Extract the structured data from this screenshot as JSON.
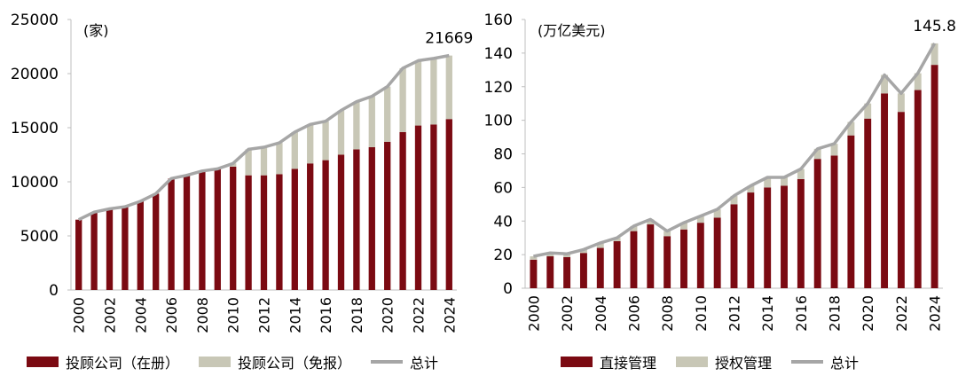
{
  "chart_data": [
    {
      "type": "bar",
      "stacked": true,
      "unit_label": "(家)",
      "categories": [
        "2000",
        "2001",
        "2002",
        "2003",
        "2004",
        "2005",
        "2006",
        "2007",
        "2008",
        "2009",
        "2010",
        "2011",
        "2012",
        "2013",
        "2014",
        "2015",
        "2016",
        "2017",
        "2018",
        "2019",
        "2020",
        "2021",
        "2022",
        "2023",
        "2024"
      ],
      "x_tick_labels": [
        "2000",
        "2002",
        "2004",
        "2006",
        "2008",
        "2010",
        "2012",
        "2014",
        "2016",
        "2018",
        "2020",
        "2022",
        "2024"
      ],
      "series": [
        {
          "name": "投顾公司（在册）",
          "kind": "bar",
          "color": "#7b0a12",
          "values": [
            6500,
            7200,
            7500,
            7700,
            8200,
            8900,
            10300,
            10600,
            11000,
            11200,
            11400,
            10600,
            10600,
            10700,
            11200,
            11700,
            12000,
            12500,
            13000,
            13200,
            13700,
            14600,
            15200,
            15300,
            15800
          ]
        },
        {
          "name": "投顾公司（免报）",
          "kind": "bar",
          "color": "#c8c7b6",
          "values": [
            0,
            0,
            0,
            0,
            0,
            0,
            0,
            0,
            0,
            0,
            300,
            2400,
            2600,
            2900,
            3400,
            3600,
            3600,
            4100,
            4400,
            4700,
            5100,
            5900,
            6000,
            6100,
            5869
          ]
        },
        {
          "name": "总计",
          "kind": "line",
          "color": "#a6a6a6",
          "values": [
            6500,
            7200,
            7500,
            7700,
            8200,
            8900,
            10300,
            10600,
            11000,
            11200,
            11700,
            13000,
            13200,
            13600,
            14600,
            15300,
            15600,
            16600,
            17400,
            17900,
            18800,
            20500,
            21200,
            21400,
            21669
          ]
        }
      ],
      "annotation": {
        "label": "21669",
        "category": "2024"
      },
      "ylim": [
        0,
        25000
      ],
      "yticks": [
        0,
        5000,
        10000,
        15000,
        20000,
        25000
      ],
      "grid": false,
      "legend_position": "bottom"
    },
    {
      "type": "bar",
      "stacked": true,
      "unit_label": "(万亿美元)",
      "categories": [
        "2000",
        "2001",
        "2002",
        "2003",
        "2004",
        "2005",
        "2006",
        "2007",
        "2008",
        "2009",
        "2010",
        "2011",
        "2012",
        "2013",
        "2014",
        "2015",
        "2016",
        "2017",
        "2018",
        "2019",
        "2020",
        "2021",
        "2022",
        "2023",
        "2024"
      ],
      "x_tick_labels": [
        "2000",
        "2002",
        "2004",
        "2006",
        "2008",
        "2010",
        "2012",
        "2014",
        "2016",
        "2018",
        "2020",
        "2022",
        "2024"
      ],
      "series": [
        {
          "name": "直接管理",
          "kind": "bar",
          "color": "#7b0a12",
          "values": [
            17,
            19,
            18.5,
            21,
            24,
            28,
            34,
            38,
            31,
            35,
            39,
            42,
            50,
            57,
            60,
            61,
            65,
            77,
            79,
            91,
            101,
            116,
            105,
            118,
            133
          ]
        },
        {
          "name": "授权管理",
          "kind": "bar",
          "color": "#c8c7b6",
          "values": [
            2,
            2,
            2,
            2,
            3,
            2,
            3,
            3,
            3,
            4,
            4,
            5,
            5,
            4,
            6,
            5,
            6,
            6,
            7,
            8,
            9,
            11,
            11,
            10,
            12.8
          ]
        },
        {
          "name": "总计",
          "kind": "line",
          "color": "#a6a6a6",
          "values": [
            19,
            21,
            20.5,
            23,
            27,
            30,
            37,
            41,
            34,
            39,
            43,
            47,
            55,
            61,
            66,
            66,
            71,
            83,
            86,
            99,
            110,
            127,
            116,
            128,
            145.8
          ]
        }
      ],
      "annotation": {
        "label": "145.8",
        "category": "2024"
      },
      "ylim": [
        0,
        160
      ],
      "yticks": [
        0,
        20,
        40,
        60,
        80,
        100,
        120,
        140,
        160
      ],
      "grid": false,
      "legend_position": "bottom"
    }
  ]
}
